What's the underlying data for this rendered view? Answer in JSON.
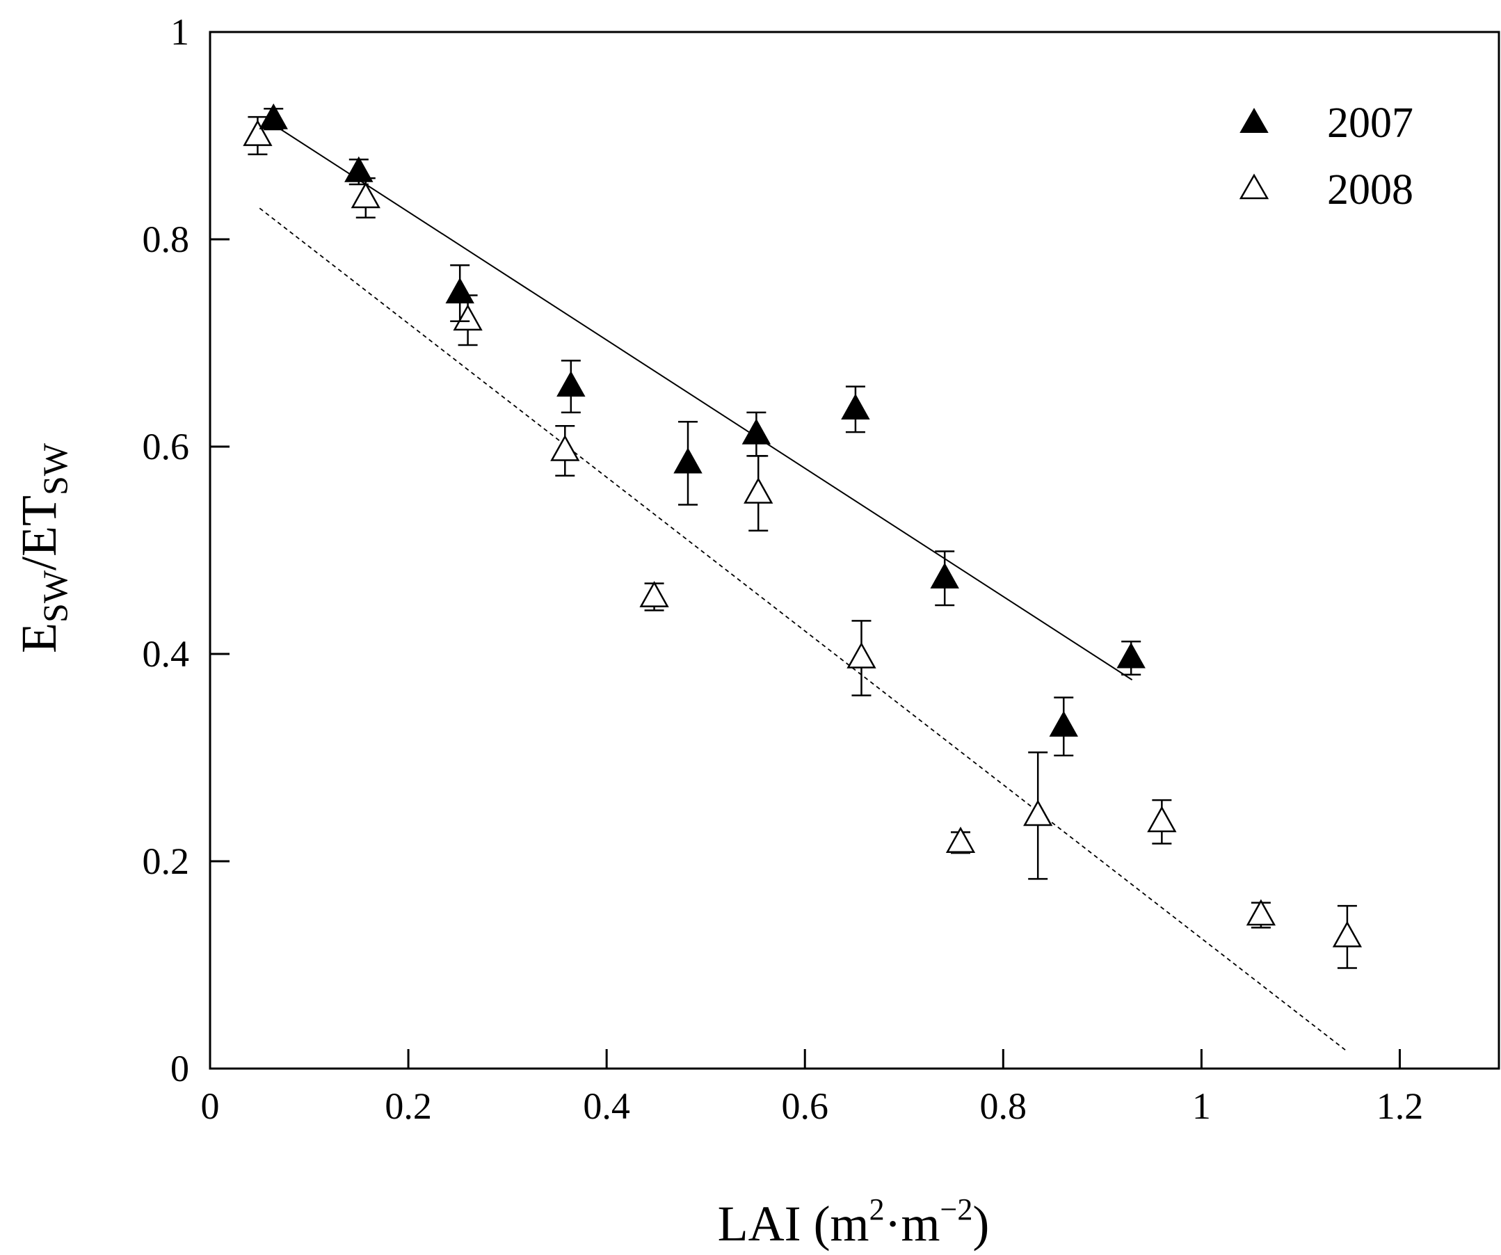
{
  "chart_data": {
    "type": "scatter",
    "xlabel": {
      "main": "LAI (m",
      "sup1": "2",
      "mid": "·m",
      "sup2": "−2",
      "end": ")"
    },
    "ylabel": {
      "e": "E",
      "sub1": "SW",
      "slash": "/ET",
      "sub2": "SW"
    },
    "xlim": [
      0,
      1.3
    ],
    "ylim": [
      0,
      1
    ],
    "xticks": [
      0,
      0.2,
      0.4,
      0.6,
      0.8,
      1,
      1.2
    ],
    "xtick_labels": [
      "0",
      "0.2",
      "0.4",
      "0.6",
      "0.8",
      "1",
      "1.2"
    ],
    "yticks": [
      0,
      0.2,
      0.4,
      0.6,
      0.8,
      1
    ],
    "ytick_labels": [
      "0",
      "0.2",
      "0.4",
      "0.6",
      "0.8",
      "1"
    ],
    "grid": false,
    "legend_position": "top-right",
    "series": [
      {
        "name": "2007",
        "marker": "filled-triangle",
        "points": [
          {
            "x": 0.064,
            "y": 0.916,
            "err": 0.01
          },
          {
            "x": 0.15,
            "y": 0.865,
            "err": 0.012
          },
          {
            "x": 0.252,
            "y": 0.748,
            "err": 0.027
          },
          {
            "x": 0.364,
            "y": 0.658,
            "err": 0.025
          },
          {
            "x": 0.482,
            "y": 0.584,
            "err": 0.04
          },
          {
            "x": 0.551,
            "y": 0.612,
            "err": 0.021
          },
          {
            "x": 0.651,
            "y": 0.636,
            "err": 0.022
          },
          {
            "x": 0.741,
            "y": 0.473,
            "err": 0.026
          },
          {
            "x": 0.861,
            "y": 0.33,
            "err": 0.028
          },
          {
            "x": 0.929,
            "y": 0.396,
            "err": 0.016
          }
        ],
        "fit": {
          "x": [
            0.065,
            0.93
          ],
          "y": [
            0.91,
            0.375
          ],
          "style": "solid"
        }
      },
      {
        "name": "2008",
        "marker": "open-triangle",
        "points": [
          {
            "x": 0.048,
            "y": 0.9,
            "err": 0.018
          },
          {
            "x": 0.157,
            "y": 0.84,
            "err": 0.019
          },
          {
            "x": 0.26,
            "y": 0.722,
            "err": 0.024
          },
          {
            "x": 0.358,
            "y": 0.596,
            "err": 0.024
          },
          {
            "x": 0.448,
            "y": 0.455,
            "err": 0.013
          },
          {
            "x": 0.553,
            "y": 0.555,
            "err": 0.036
          },
          {
            "x": 0.657,
            "y": 0.396,
            "err": 0.036
          },
          {
            "x": 0.757,
            "y": 0.218,
            "err": 0.01
          },
          {
            "x": 0.835,
            "y": 0.244,
            "err": 0.061
          },
          {
            "x": 0.96,
            "y": 0.238,
            "err": 0.021
          },
          {
            "x": 1.06,
            "y": 0.148,
            "err": 0.012
          },
          {
            "x": 1.147,
            "y": 0.127,
            "err": 0.03
          }
        ],
        "fit": {
          "x": [
            0.05,
            1.145
          ],
          "y": [
            0.83,
            0.018
          ],
          "style": "dashed"
        }
      }
    ]
  }
}
